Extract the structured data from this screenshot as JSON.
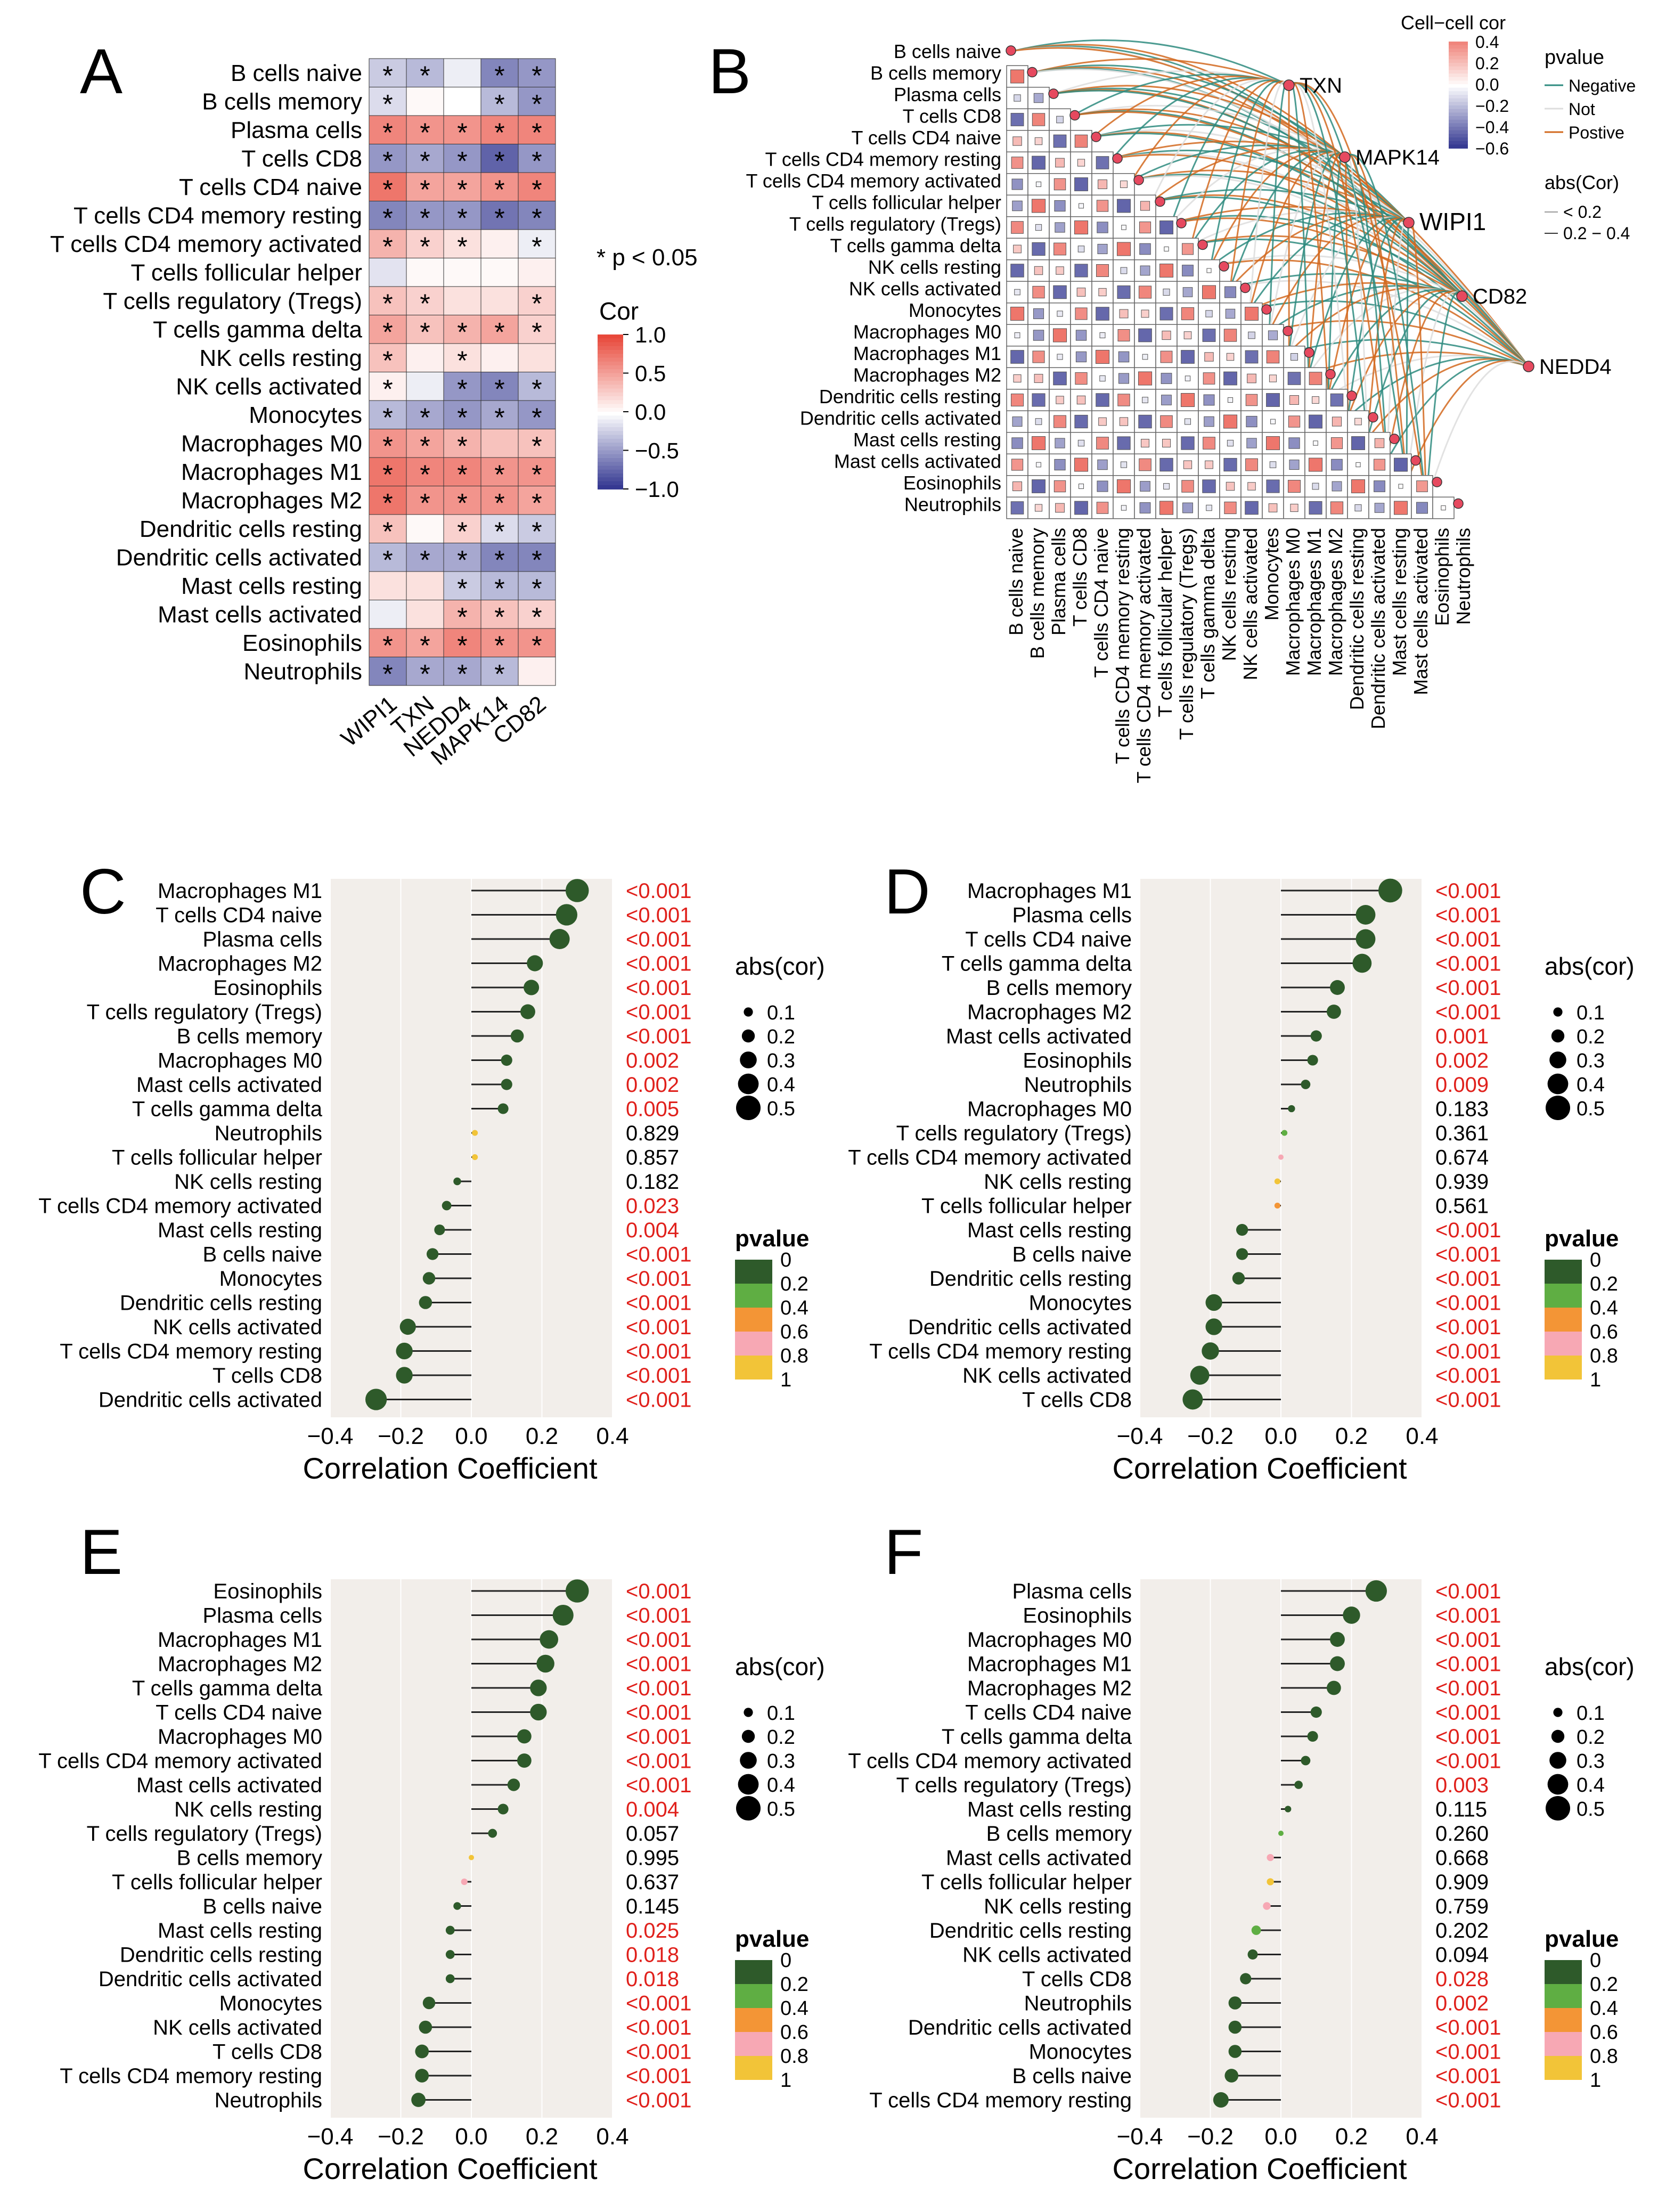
{
  "colors": {
    "heat_pos": "#e8483a",
    "heat_neg": "#2b2f8c",
    "heat_mid": "#ffffff",
    "lollipop_bg": "#f2eeea",
    "sig_red": "#e0201b",
    "p_colors": [
      "#2e5a2a",
      "#5fae43",
      "#f39536",
      "#f7a8b4",
      "#f2c438"
    ],
    "edge_neg": "#2e8b7f",
    "edge_not": "#dddddd",
    "edge_pos": "#d2691e",
    "node_fill": "#e6495f"
  },
  "heatmap": {
    "panel_label": "A",
    "rows": [
      "B cells naive",
      "B cells memory",
      "Plasma cells",
      "T cells CD8",
      "T cells CD4 naive",
      "T cells CD4 memory resting",
      "T cells CD4 memory activated",
      "T cells follicular helper",
      "T cells regulatory (Tregs)",
      "T cells gamma delta",
      "NK cells resting",
      "NK cells activated",
      "Monocytes",
      "Macrophages M0",
      "Macrophages M1",
      "Macrophages M2",
      "Dendritic cells resting",
      "Dendritic cells activated",
      "Mast cells resting",
      "Mast cells activated",
      "Eosinophils",
      "Neutrophils"
    ],
    "cols": [
      "WIPI1",
      "TXN",
      "NEDD4",
      "MAPK14",
      "CD82"
    ],
    "values": [
      [
        -0.15,
        -0.2,
        -0.05,
        -0.35,
        -0.3
      ],
      [
        -0.1,
        0.02,
        0.0,
        -0.2,
        -0.3
      ],
      [
        0.4,
        0.35,
        0.35,
        0.4,
        0.4
      ],
      [
        -0.3,
        -0.25,
        -0.3,
        -0.45,
        -0.3
      ],
      [
        0.45,
        0.3,
        0.3,
        0.35,
        0.4
      ],
      [
        -0.35,
        -0.3,
        -0.3,
        -0.4,
        -0.35
      ],
      [
        0.25,
        0.15,
        0.1,
        0.05,
        -0.05
      ],
      [
        -0.08,
        0.02,
        0.02,
        0.02,
        0.05
      ],
      [
        0.2,
        0.15,
        0.1,
        0.1,
        0.15
      ],
      [
        0.3,
        0.2,
        0.25,
        0.3,
        0.15
      ],
      [
        0.2,
        0.05,
        0.1,
        0.05,
        0.1
      ],
      [
        0.05,
        -0.05,
        -0.3,
        -0.35,
        -0.2
      ],
      [
        -0.2,
        -0.25,
        -0.3,
        -0.25,
        -0.3
      ],
      [
        0.35,
        0.3,
        0.25,
        0.2,
        0.2
      ],
      [
        0.45,
        0.4,
        0.4,
        0.35,
        0.35
      ],
      [
        0.45,
        0.35,
        0.35,
        0.35,
        0.3
      ],
      [
        0.2,
        0.02,
        0.15,
        -0.1,
        -0.15
      ],
      [
        -0.2,
        -0.25,
        -0.25,
        -0.35,
        -0.35
      ],
      [
        0.1,
        0.1,
        -0.15,
        -0.2,
        -0.2
      ],
      [
        -0.05,
        0.1,
        0.25,
        0.2,
        0.15
      ],
      [
        0.35,
        0.3,
        0.4,
        0.35,
        0.35
      ],
      [
        -0.35,
        -0.25,
        -0.25,
        -0.2,
        0.05
      ]
    ],
    "stars": [
      [
        1,
        1,
        0,
        1,
        1
      ],
      [
        1,
        0,
        0,
        1,
        1
      ],
      [
        1,
        1,
        1,
        1,
        1
      ],
      [
        1,
        1,
        1,
        1,
        1
      ],
      [
        1,
        1,
        1,
        1,
        1
      ],
      [
        1,
        1,
        1,
        1,
        1
      ],
      [
        1,
        1,
        1,
        0,
        1
      ],
      [
        0,
        0,
        0,
        0,
        0
      ],
      [
        1,
        1,
        0,
        0,
        1
      ],
      [
        1,
        1,
        1,
        1,
        1
      ],
      [
        1,
        0,
        1,
        0,
        0
      ],
      [
        1,
        0,
        1,
        1,
        1
      ],
      [
        1,
        1,
        1,
        1,
        1
      ],
      [
        1,
        1,
        1,
        0,
        1
      ],
      [
        1,
        1,
        1,
        1,
        1
      ],
      [
        1,
        1,
        1,
        1,
        1
      ],
      [
        1,
        0,
        1,
        1,
        1
      ],
      [
        1,
        1,
        1,
        1,
        1
      ],
      [
        0,
        0,
        1,
        1,
        1
      ],
      [
        0,
        0,
        1,
        1,
        1
      ],
      [
        1,
        1,
        1,
        1,
        1
      ],
      [
        1,
        1,
        1,
        1,
        0
      ]
    ],
    "star_symbol": "*",
    "p_note": "* p < 0.05",
    "legend_title": "Cor",
    "legend_ticks": [
      "1.0",
      "0.5",
      "0.0",
      "−0.5",
      "−1.0"
    ],
    "legend_values": [
      1.0,
      0.5,
      0.0,
      -0.5,
      -1.0
    ]
  },
  "network": {
    "panel_label": "B",
    "cells": [
      "B cells naive",
      "B cells memory",
      "Plasma cells",
      "T cells CD8",
      "T cells CD4 naive",
      "T cells CD4 memory resting",
      "T cells CD4 memory activated",
      "T cells follicular helper",
      "T cells regulatory (Tregs)",
      "T cells gamma delta",
      "NK cells resting",
      "NK cells activated",
      "Monocytes",
      "Macrophages M0",
      "Macrophages M1",
      "Macrophages M2",
      "Dendritic cells resting",
      "Dendritic cells activated",
      "Mast cells resting",
      "Mast cells activated",
      "Eosinophils",
      "Neutrophils"
    ],
    "genes": [
      "TXN",
      "MAPK14",
      "WIPI1",
      "CD82",
      "NEDD4"
    ],
    "legend_cor_title": "Cell−cell cor",
    "legend_cor_ticks": [
      "0.4",
      "0.2",
      "0.0",
      "−0.2",
      "−0.4",
      "−0.6"
    ],
    "legend_cor_values": [
      0.4,
      0.2,
      0.0,
      -0.2,
      -0.4,
      -0.6
    ],
    "legend_p_title": "pvalue",
    "legend_p_items": [
      "Negative",
      "Not",
      "Postive"
    ],
    "legend_abs_title": "abs(Cor)",
    "legend_abs_items": [
      "< 0.2",
      "0.2 − 0.4"
    ]
  },
  "lollipops": [
    {
      "panel_label": "C",
      "chart_data": {
        "type": "lollipop",
        "cells": [
          "Macrophages M1",
          "T cells CD4 naive",
          "Plasma cells",
          "Macrophages M2",
          "Eosinophils",
          "T cells regulatory (Tregs)",
          "B cells memory",
          "Macrophages M0",
          "Mast cells activated",
          "T cells gamma delta",
          "Neutrophils",
          "T cells follicular helper",
          "NK cells resting",
          "T cells CD4 memory activated",
          "Mast cells resting",
          "B cells naive",
          "Monocytes",
          "Dendritic cells resting",
          "NK cells activated",
          "T cells CD4 memory resting",
          "T cells CD8",
          "Dendritic cells activated"
        ],
        "cor": [
          0.3,
          0.27,
          0.25,
          0.18,
          0.17,
          0.16,
          0.13,
          0.1,
          0.1,
          0.09,
          0.01,
          0.01,
          -0.04,
          -0.07,
          -0.09,
          -0.11,
          -0.12,
          -0.13,
          -0.18,
          -0.19,
          -0.19,
          -0.27
        ],
        "pvalue": [
          "<0.001",
          "<0.001",
          "<0.001",
          "<0.001",
          "<0.001",
          "<0.001",
          "<0.001",
          "0.002",
          "0.002",
          "0.005",
          "0.829",
          "0.857",
          "0.182",
          "0.023",
          "0.004",
          "<0.001",
          "<0.001",
          "<0.001",
          "<0.001",
          "<0.001",
          "<0.001",
          "<0.001"
        ],
        "p_num": [
          0.0005,
          0.0005,
          0.0005,
          0.0005,
          0.0005,
          0.0005,
          0.0005,
          0.002,
          0.002,
          0.005,
          0.829,
          0.857,
          0.182,
          0.023,
          0.004,
          0.0005,
          0.0005,
          0.0005,
          0.0005,
          0.0005,
          0.0005,
          0.0005
        ],
        "xlim": [
          -0.4,
          0.4
        ],
        "xticks": [
          "−0.4",
          "−0.2",
          "0.0",
          "0.2",
          "0.4"
        ],
        "xtick_values": [
          -0.4,
          -0.2,
          0.0,
          0.2,
          0.4
        ],
        "xlabel": "Correlation Coefficient"
      }
    },
    {
      "panel_label": "D",
      "chart_data": {
        "type": "lollipop",
        "cells": [
          "Macrophages M1",
          "Plasma cells",
          "T cells CD4 naive",
          "T cells gamma delta",
          "B cells memory",
          "Macrophages M2",
          "Mast cells activated",
          "Eosinophils",
          "Neutrophils",
          "Macrophages M0",
          "T cells regulatory (Tregs)",
          "T cells CD4 memory activated",
          "NK cells resting",
          "T cells follicular helper",
          "Mast cells resting",
          "B cells naive",
          "Dendritic cells resting",
          "Monocytes",
          "Dendritic cells activated",
          "T cells CD4 memory resting",
          "NK cells activated",
          "T cells CD8"
        ],
        "cor": [
          0.31,
          0.24,
          0.24,
          0.23,
          0.16,
          0.15,
          0.1,
          0.09,
          0.07,
          0.03,
          0.01,
          0.0,
          -0.01,
          -0.01,
          -0.11,
          -0.11,
          -0.12,
          -0.19,
          -0.19,
          -0.2,
          -0.23,
          -0.25
        ],
        "pvalue": [
          "<0.001",
          "<0.001",
          "<0.001",
          "<0.001",
          "<0.001",
          "<0.001",
          "0.001",
          "0.002",
          "0.009",
          "0.183",
          "0.361",
          "0.674",
          "0.939",
          "0.561",
          "<0.001",
          "<0.001",
          "<0.001",
          "<0.001",
          "<0.001",
          "<0.001",
          "<0.001",
          "<0.001"
        ],
        "p_num": [
          0.0005,
          0.0005,
          0.0005,
          0.0005,
          0.0005,
          0.0005,
          0.001,
          0.002,
          0.009,
          0.183,
          0.361,
          0.674,
          0.939,
          0.561,
          0.0005,
          0.0005,
          0.0005,
          0.0005,
          0.0005,
          0.0005,
          0.0005,
          0.0005
        ],
        "xlim": [
          -0.4,
          0.4
        ],
        "xticks": [
          "−0.4",
          "−0.2",
          "0.0",
          "0.2",
          "0.4"
        ],
        "xtick_values": [
          -0.4,
          -0.2,
          0.0,
          0.2,
          0.4
        ],
        "xlabel": "Correlation Coefficient"
      }
    },
    {
      "panel_label": "E",
      "chart_data": {
        "type": "lollipop",
        "cells": [
          "Eosinophils",
          "Plasma cells",
          "Macrophages M1",
          "Macrophages M2",
          "T cells gamma delta",
          "T cells CD4 naive",
          "Macrophages M0",
          "T cells CD4 memory activated",
          "Mast cells activated",
          "NK cells resting",
          "T cells regulatory (Tregs)",
          "B cells memory",
          "T cells follicular helper",
          "B cells naive",
          "Mast cells resting",
          "Dendritic cells resting",
          "Dendritic cells activated",
          "Monocytes",
          "NK cells activated",
          "T cells CD8",
          "T cells CD4 memory resting",
          "Neutrophils"
        ],
        "cor": [
          0.3,
          0.26,
          0.22,
          0.21,
          0.19,
          0.19,
          0.15,
          0.15,
          0.12,
          0.09,
          0.06,
          0.0,
          -0.02,
          -0.04,
          -0.06,
          -0.06,
          -0.06,
          -0.12,
          -0.13,
          -0.14,
          -0.14,
          -0.15
        ],
        "pvalue": [
          "<0.001",
          "<0.001",
          "<0.001",
          "<0.001",
          "<0.001",
          "<0.001",
          "<0.001",
          "<0.001",
          "<0.001",
          "0.004",
          "0.057",
          "0.995",
          "0.637",
          "0.145",
          "0.025",
          "0.018",
          "0.018",
          "<0.001",
          "<0.001",
          "<0.001",
          "<0.001",
          "<0.001"
        ],
        "p_num": [
          0.0005,
          0.0005,
          0.0005,
          0.0005,
          0.0005,
          0.0005,
          0.0005,
          0.0005,
          0.0005,
          0.004,
          0.057,
          0.995,
          0.637,
          0.145,
          0.025,
          0.018,
          0.018,
          0.0005,
          0.0005,
          0.0005,
          0.0005,
          0.0005
        ],
        "xlim": [
          -0.4,
          0.4
        ],
        "xticks": [
          "−0.4",
          "−0.2",
          "0.0",
          "0.2",
          "0.4"
        ],
        "xtick_values": [
          -0.4,
          -0.2,
          0.0,
          0.2,
          0.4
        ],
        "xlabel": "Correlation Coefficient"
      }
    },
    {
      "panel_label": "F",
      "chart_data": {
        "type": "lollipop",
        "cells": [
          "Plasma cells",
          "Eosinophils",
          "Macrophages M0",
          "Macrophages M1",
          "Macrophages M2",
          "T cells CD4 naive",
          "T cells gamma delta",
          "T cells CD4 memory activated",
          "T cells regulatory (Tregs)",
          "Mast cells resting",
          "B cells memory",
          "Mast cells activated",
          "T cells follicular helper",
          "NK cells resting",
          "Dendritic cells resting",
          "NK cells activated",
          "T cells CD8",
          "Neutrophils",
          "Dendritic cells activated",
          "Monocytes",
          "B cells naive",
          "T cells CD4 memory resting"
        ],
        "cor": [
          0.27,
          0.2,
          0.16,
          0.16,
          0.15,
          0.1,
          0.09,
          0.07,
          0.05,
          0.02,
          0.0,
          -0.03,
          -0.03,
          -0.04,
          -0.07,
          -0.08,
          -0.1,
          -0.13,
          -0.13,
          -0.13,
          -0.14,
          -0.17
        ],
        "pvalue": [
          "<0.001",
          "<0.001",
          "<0.001",
          "<0.001",
          "<0.001",
          "<0.001",
          "<0.001",
          "<0.001",
          "0.003",
          "0.115",
          "0.260",
          "0.668",
          "0.909",
          "0.759",
          "0.202",
          "0.094",
          "0.028",
          "0.002",
          "<0.001",
          "<0.001",
          "<0.001",
          "<0.001"
        ],
        "p_num": [
          0.0005,
          0.0005,
          0.0005,
          0.0005,
          0.0005,
          0.0005,
          0.0005,
          0.0005,
          0.003,
          0.115,
          0.26,
          0.668,
          0.909,
          0.759,
          0.202,
          0.094,
          0.028,
          0.002,
          0.0005,
          0.0005,
          0.0005,
          0.0005
        ],
        "xlim": [
          -0.4,
          0.4
        ],
        "xticks": [
          "−0.4",
          "−0.2",
          "0.0",
          "0.2",
          "0.4"
        ],
        "xtick_values": [
          -0.4,
          -0.2,
          0.0,
          0.2,
          0.4
        ],
        "xlabel": "Correlation Coefficient"
      }
    }
  ],
  "lollipop_legend": {
    "size_title": "abs(cor)",
    "size_items": [
      "0.1",
      "0.2",
      "0.3",
      "0.4",
      "0.5"
    ],
    "size_values": [
      0.1,
      0.2,
      0.3,
      0.4,
      0.5
    ],
    "p_title": "pvalue",
    "p_ticks": [
      "0",
      "0.2",
      "0.4",
      "0.6",
      "0.8",
      "1"
    ]
  }
}
